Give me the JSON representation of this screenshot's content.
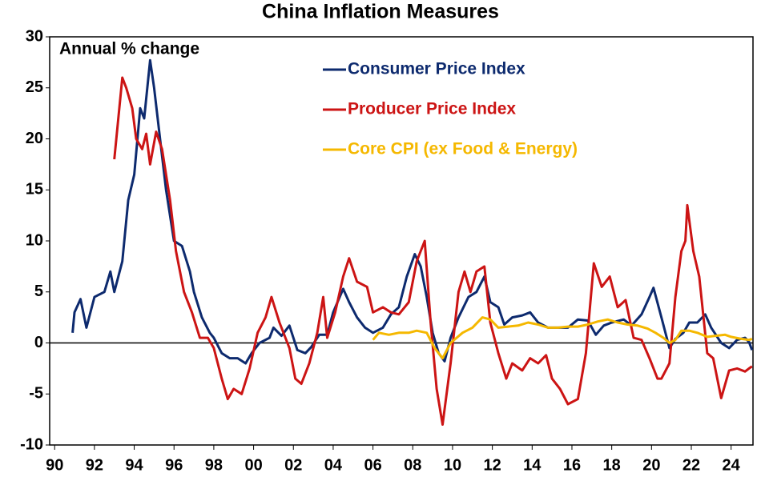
{
  "chart_data": {
    "type": "line",
    "title": "China Inflation Measures",
    "annotation": "Annual % change",
    "xlim": [
      1989.75,
      2025.1
    ],
    "ylim": [
      -10,
      30
    ],
    "yticks": [
      -10,
      -5,
      0,
      5,
      10,
      15,
      20,
      25,
      30
    ],
    "xticks": [
      {
        "value": 1990,
        "label": "90"
      },
      {
        "value": 1992,
        "label": "92"
      },
      {
        "value": 1994,
        "label": "94"
      },
      {
        "value": 1996,
        "label": "96"
      },
      {
        "value": 1998,
        "label": "98"
      },
      {
        "value": 2000,
        "label": "00"
      },
      {
        "value": 2002,
        "label": "02"
      },
      {
        "value": 2004,
        "label": "04"
      },
      {
        "value": 2006,
        "label": "06"
      },
      {
        "value": 2008,
        "label": "08"
      },
      {
        "value": 2010,
        "label": "10"
      },
      {
        "value": 2012,
        "label": "12"
      },
      {
        "value": 2014,
        "label": "14"
      },
      {
        "value": 2016,
        "label": "16"
      },
      {
        "value": 2018,
        "label": "18"
      },
      {
        "value": 2020,
        "label": "20"
      },
      {
        "value": 2022,
        "label": "22"
      },
      {
        "value": 2024,
        "label": "24"
      }
    ],
    "series": [
      {
        "name": "Consumer Price Index",
        "color": "#0d2a6e",
        "x": [
          1990.9,
          1991,
          1991.3,
          1991.6,
          1992,
          1992.5,
          1992.8,
          1993,
          1993.4,
          1993.7,
          1994,
          1994.3,
          1994.5,
          1994.8,
          1995,
          1995.3,
          1995.6,
          1996,
          1996.4,
          1996.8,
          1997,
          1997.4,
          1997.8,
          1998,
          1998.4,
          1998.8,
          1999.2,
          1999.6,
          1999.9,
          2000.3,
          2000.8,
          2001,
          2001.4,
          2001.8,
          2002.2,
          2002.6,
          2002.9,
          2003.3,
          2003.7,
          2004,
          2004.5,
          2004.8,
          2005.2,
          2005.6,
          2006,
          2006.5,
          2006.9,
          2007.3,
          2007.7,
          2008.1,
          2008.4,
          2008.7,
          2009,
          2009.3,
          2009.6,
          2009.9,
          2010.3,
          2010.8,
          2011.2,
          2011.6,
          2011.9,
          2012.3,
          2012.6,
          2013,
          2013.5,
          2013.9,
          2014.3,
          2014.8,
          2015.3,
          2015.8,
          2016.3,
          2016.8,
          2017.2,
          2017.6,
          2018,
          2018.6,
          2019,
          2019.5,
          2019.9,
          2020.1,
          2020.5,
          2020.9,
          2021.2,
          2021.6,
          2021.9,
          2022.3,
          2022.7,
          2023,
          2023.5,
          2023.9,
          2024.3,
          2024.7,
          2024.9,
          2025.05
        ],
        "values": [
          1,
          3,
          4.3,
          1.5,
          4.5,
          5,
          7,
          5,
          8,
          14,
          16.5,
          23,
          22,
          27.7,
          25,
          20,
          15,
          10,
          9.5,
          7,
          5,
          2.5,
          1,
          0.5,
          -1,
          -1.5,
          -1.5,
          -2,
          -1,
          0,
          0.5,
          1.5,
          0.7,
          1.7,
          -0.7,
          -1,
          -0.4,
          0.8,
          0.8,
          3,
          5.3,
          4,
          2.5,
          1.5,
          1,
          1.5,
          2.8,
          3.5,
          6.5,
          8.7,
          7.5,
          4.5,
          1,
          -1,
          -1.8,
          0.5,
          2.5,
          4.5,
          5,
          6.5,
          4,
          3.5,
          1.8,
          2.5,
          2.7,
          3,
          2,
          1.5,
          1.5,
          1.5,
          2.3,
          2.2,
          0.8,
          1.7,
          2,
          2.3,
          1.7,
          2.8,
          4.5,
          5.4,
          2.5,
          -0.5,
          0.4,
          1,
          2,
          2,
          2.8,
          1.5,
          0,
          -0.5,
          0.3,
          0.5,
          0.1,
          -0.7
        ]
      },
      {
        "name": "Producer Price Index",
        "color": "#cc1414",
        "x": [
          1993,
          1993.2,
          1993.4,
          1993.6,
          1993.9,
          1994.1,
          1994.4,
          1994.6,
          1994.8,
          1995.1,
          1995.4,
          1995.8,
          1996.1,
          1996.5,
          1996.9,
          1997.3,
          1997.7,
          1998,
          1998.4,
          1998.7,
          1999,
          1999.4,
          1999.8,
          2000.2,
          2000.6,
          2000.9,
          2001.3,
          2001.8,
          2002.1,
          2002.4,
          2002.8,
          2003.2,
          2003.5,
          2003.7,
          2004.1,
          2004.5,
          2004.8,
          2005.2,
          2005.7,
          2006,
          2006.5,
          2006.9,
          2007.3,
          2007.8,
          2008.2,
          2008.6,
          2008.9,
          2009.2,
          2009.5,
          2009.9,
          2010.3,
          2010.6,
          2010.9,
          2011.2,
          2011.6,
          2011.9,
          2012.3,
          2012.7,
          2013,
          2013.5,
          2013.9,
          2014.3,
          2014.7,
          2015,
          2015.4,
          2015.8,
          2016.3,
          2016.7,
          2017.1,
          2017.5,
          2017.9,
          2018.3,
          2018.7,
          2019.1,
          2019.5,
          2019.9,
          2020.3,
          2020.5,
          2020.9,
          2021.2,
          2021.5,
          2021.7,
          2021.8,
          2022.1,
          2022.4,
          2022.8,
          2023.1,
          2023.5,
          2023.9,
          2024.3,
          2024.7,
          2024.9,
          2025.05
        ],
        "values": [
          18,
          22,
          26,
          25,
          23,
          20,
          19,
          20.5,
          17.5,
          20.7,
          19,
          14,
          9,
          5,
          3,
          0.5,
          0.5,
          -0.5,
          -3.5,
          -5.5,
          -4.5,
          -5,
          -2.5,
          1,
          2.5,
          4.5,
          2,
          -0.5,
          -3.5,
          -4,
          -2,
          1,
          4.5,
          0.5,
          3,
          6.5,
          8.3,
          6,
          5.5,
          3,
          3.5,
          3,
          2.8,
          4,
          8,
          10,
          2,
          -4.5,
          -8,
          -2,
          5,
          7,
          5,
          7,
          7.5,
          2,
          -1,
          -3.5,
          -2,
          -2.7,
          -1.5,
          -2,
          -1.2,
          -3.5,
          -4.5,
          -6,
          -5.5,
          -1,
          7.8,
          5.5,
          6.5,
          3.5,
          4.2,
          0.5,
          0.3,
          -1.5,
          -3.5,
          -3.5,
          -2,
          4.5,
          9,
          10,
          13.5,
          9,
          6.5,
          -1,
          -1.5,
          -5.4,
          -2.7,
          -2.5,
          -2.8,
          -2.5,
          -2.3
        ]
      },
      {
        "name": "Core CPI (ex Food & Energy)",
        "color": "#f5b800",
        "x": [
          2006,
          2006.3,
          2006.8,
          2007.3,
          2007.8,
          2008.2,
          2008.7,
          2009.1,
          2009.5,
          2009.9,
          2010.5,
          2011,
          2011.5,
          2011.9,
          2012.3,
          2012.8,
          2013.3,
          2013.8,
          2014.3,
          2014.8,
          2015.3,
          2015.8,
          2016.3,
          2016.8,
          2017.3,
          2017.8,
          2018.3,
          2018.8,
          2019.3,
          2019.8,
          2020.2,
          2020.6,
          2020.9,
          2021.2,
          2021.5,
          2021.9,
          2022.3,
          2022.8,
          2023.2,
          2023.7,
          2024,
          2024.5,
          2024.9,
          2025.05
        ],
        "values": [
          0.3,
          1,
          0.8,
          1,
          1,
          1.2,
          1,
          -0.5,
          -1.5,
          0,
          1,
          1.5,
          2.5,
          2.3,
          1.5,
          1.6,
          1.7,
          2,
          1.8,
          1.5,
          1.5,
          1.6,
          1.6,
          1.8,
          2.1,
          2.3,
          2,
          1.8,
          1.7,
          1.4,
          1,
          0.5,
          0,
          0.3,
          1.2,
          1.2,
          1,
          0.6,
          0.7,
          0.8,
          0.6,
          0.4,
          0.3,
          0.4
        ]
      }
    ]
  }
}
